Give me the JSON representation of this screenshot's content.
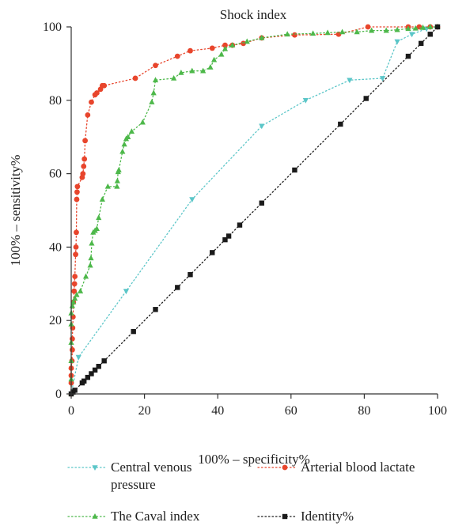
{
  "chart_data": {
    "type": "line",
    "title": "Shock index",
    "xlabel": "100% – specificity%",
    "ylabel": "100% – sensitivity%",
    "xlim": [
      0,
      100
    ],
    "ylim": [
      0,
      100
    ],
    "x_ticks": [
      "0",
      "20",
      "40",
      "60",
      "80",
      "100"
    ],
    "y_ticks": [
      "0",
      "20",
      "40",
      "60",
      "80",
      "100"
    ],
    "grid": false,
    "legend_position": "bottom",
    "series": [
      {
        "name": "Central venous pressure",
        "color": "#5bc6c8",
        "marker": "triangle-down",
        "line": "dotted",
        "points": [
          [
            0,
            0
          ],
          [
            2,
            10
          ],
          [
            15,
            28
          ],
          [
            33,
            53
          ],
          [
            52,
            73
          ],
          [
            64,
            80
          ],
          [
            76,
            85.5
          ],
          [
            85,
            86
          ],
          [
            89,
            96
          ],
          [
            93,
            98
          ],
          [
            97,
            99.5
          ],
          [
            100,
            100
          ]
        ]
      },
      {
        "name": "Arterial blood lactate",
        "color": "#e8452c",
        "marker": "circle",
        "line": "dotted",
        "points": [
          [
            0,
            0
          ],
          [
            0,
            3
          ],
          [
            0,
            5
          ],
          [
            0,
            7
          ],
          [
            0.2,
            9
          ],
          [
            0.3,
            12
          ],
          [
            0.3,
            15
          ],
          [
            0.4,
            18
          ],
          [
            0.5,
            21
          ],
          [
            0.6,
            25
          ],
          [
            0.8,
            28
          ],
          [
            0.9,
            30
          ],
          [
            1,
            32
          ],
          [
            1.2,
            38
          ],
          [
            1.3,
            40
          ],
          [
            1.4,
            44
          ],
          [
            1.5,
            53
          ],
          [
            1.6,
            55
          ],
          [
            1.7,
            56.5
          ],
          [
            3,
            59
          ],
          [
            3.2,
            60
          ],
          [
            3.4,
            62
          ],
          [
            3.6,
            64
          ],
          [
            3.8,
            69
          ],
          [
            4.5,
            76
          ],
          [
            5.5,
            79.5
          ],
          [
            6.5,
            81.5
          ],
          [
            7,
            82
          ],
          [
            8,
            83
          ],
          [
            8.5,
            84
          ],
          [
            9,
            84
          ],
          [
            17.5,
            86
          ],
          [
            23,
            89.5
          ],
          [
            29,
            92
          ],
          [
            32.5,
            93.5
          ],
          [
            38.5,
            94.2
          ],
          [
            42,
            95
          ],
          [
            44,
            95
          ],
          [
            47,
            95.5
          ],
          [
            52,
            97
          ],
          [
            61,
            97.8
          ],
          [
            73,
            98
          ],
          [
            81,
            100
          ],
          [
            92,
            100
          ],
          [
            95,
            100
          ],
          [
            98,
            100
          ],
          [
            100,
            100
          ]
        ]
      },
      {
        "name": "The Caval index",
        "color": "#4db84a",
        "marker": "triangle-up",
        "line": "dotted",
        "points": [
          [
            0,
            0
          ],
          [
            0,
            4
          ],
          [
            0,
            9
          ],
          [
            0,
            14
          ],
          [
            0,
            19
          ],
          [
            0,
            22
          ],
          [
            0.3,
            24
          ],
          [
            0.6,
            25
          ],
          [
            1,
            26
          ],
          [
            1.5,
            27
          ],
          [
            2.5,
            28
          ],
          [
            4,
            32
          ],
          [
            5.2,
            35
          ],
          [
            5.4,
            37
          ],
          [
            5.6,
            41
          ],
          [
            6,
            44
          ],
          [
            6.5,
            44.5
          ],
          [
            7,
            45
          ],
          [
            7.5,
            48
          ],
          [
            8.5,
            53
          ],
          [
            10,
            56.5
          ],
          [
            12.5,
            56.5
          ],
          [
            12.6,
            58
          ],
          [
            12.8,
            60.5
          ],
          [
            13,
            61
          ],
          [
            14,
            66
          ],
          [
            14.5,
            68
          ],
          [
            15,
            69.5
          ],
          [
            15.5,
            70
          ],
          [
            16.5,
            71.5
          ],
          [
            19.5,
            74
          ],
          [
            22,
            79.5
          ],
          [
            22.5,
            82
          ],
          [
            23,
            85.5
          ],
          [
            28,
            86
          ],
          [
            30,
            87.5
          ],
          [
            33,
            88
          ],
          [
            36,
            88
          ],
          [
            38,
            89
          ],
          [
            39,
            91
          ],
          [
            41,
            92.5
          ],
          [
            42,
            94
          ],
          [
            44,
            95
          ],
          [
            48,
            96
          ],
          [
            52,
            97
          ],
          [
            59,
            98
          ],
          [
            66,
            98.2
          ],
          [
            70,
            98.4
          ],
          [
            74,
            98.6
          ],
          [
            78,
            98.6
          ],
          [
            82,
            99
          ],
          [
            86,
            99
          ],
          [
            89,
            99.2
          ],
          [
            92,
            99.5
          ],
          [
            94,
            99.6
          ],
          [
            96,
            99.8
          ],
          [
            98,
            100
          ],
          [
            100,
            100
          ]
        ]
      },
      {
        "name": "Identity%",
        "color": "#1a1a1a",
        "marker": "square",
        "line": "dotted",
        "points": [
          [
            0,
            0
          ],
          [
            0.5,
            0.5
          ],
          [
            1,
            1
          ],
          [
            3,
            3
          ],
          [
            3.5,
            3.5
          ],
          [
            4.5,
            4.5
          ],
          [
            5.5,
            5.5
          ],
          [
            6.5,
            6.5
          ],
          [
            7.5,
            7.5
          ],
          [
            9,
            9
          ],
          [
            17,
            17
          ],
          [
            23,
            23
          ],
          [
            29,
            29
          ],
          [
            32.5,
            32.5
          ],
          [
            38.5,
            38.5
          ],
          [
            42,
            42
          ],
          [
            43,
            43
          ],
          [
            46,
            46
          ],
          [
            52,
            52
          ],
          [
            61,
            61
          ],
          [
            73.5,
            73.5
          ],
          [
            80.5,
            80.5
          ],
          [
            92,
            92
          ],
          [
            95.5,
            95.5
          ],
          [
            98,
            98
          ],
          [
            100,
            100
          ]
        ]
      }
    ]
  }
}
